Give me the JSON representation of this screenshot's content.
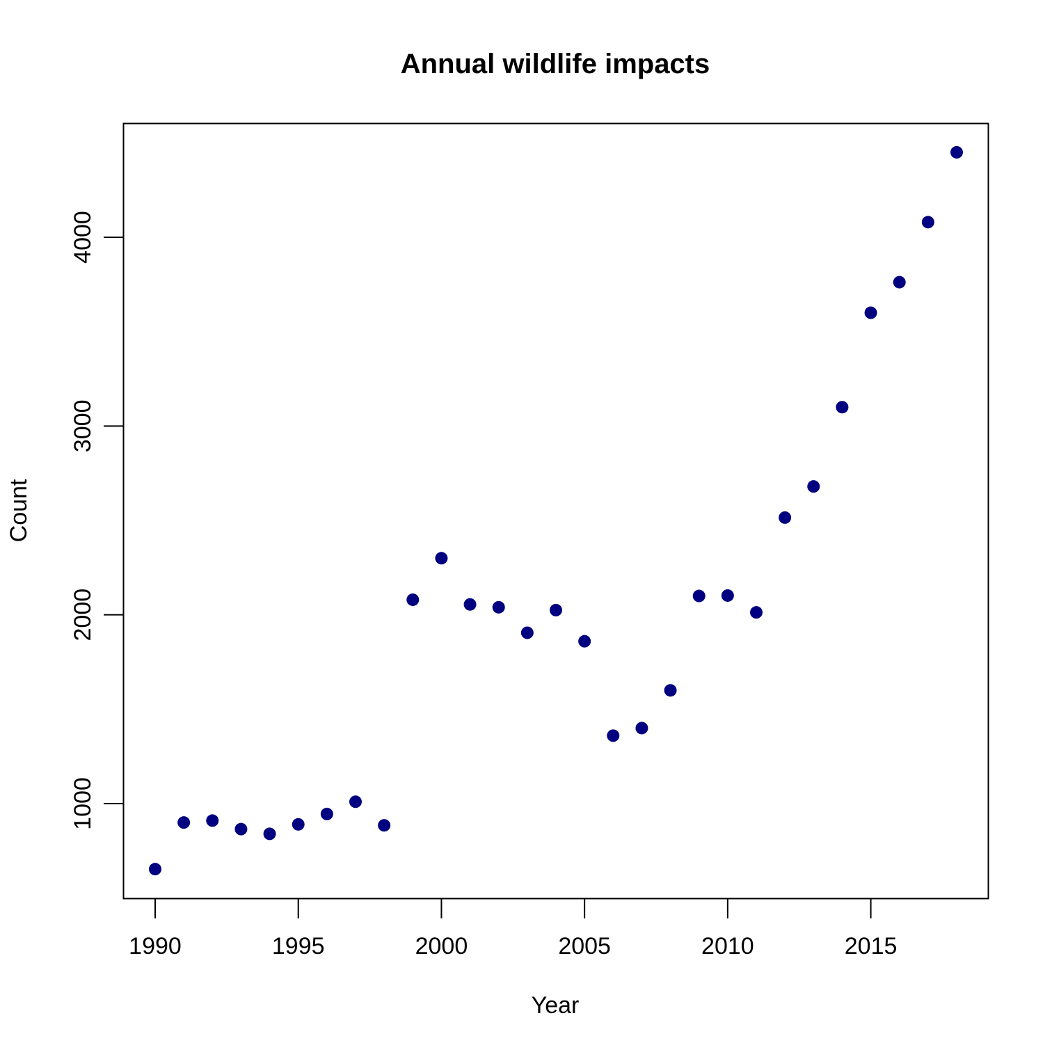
{
  "chart_data": {
    "type": "scatter",
    "title": "Annual wildlife impacts",
    "xlabel": "Year",
    "ylabel": "Count",
    "xlim": [
      1988.9,
      1989.1
    ],
    "ylim": [
      500,
      4600
    ],
    "x_ticks": [
      1990,
      1995,
      2000,
      2005,
      2010,
      2015
    ],
    "y_ticks": [
      1000,
      2000,
      3000,
      4000
    ],
    "grid": false,
    "point_color": "#000080",
    "x": [
      1990,
      1991,
      1992,
      1993,
      1994,
      1995,
      1996,
      1997,
      1998,
      1999,
      2000,
      2001,
      2002,
      2003,
      2004,
      2005,
      2006,
      2007,
      2008,
      2009,
      2010,
      2011,
      2012,
      2013,
      2014,
      2015,
      2016,
      2017,
      2018
    ],
    "y": [
      653,
      900,
      910,
      865,
      840,
      890,
      945,
      1010,
      885,
      2080,
      2300,
      2055,
      2040,
      1905,
      2025,
      1860,
      1360,
      1400,
      1600,
      2100,
      2102,
      2013,
      2515,
      2680,
      3100,
      3600,
      3762,
      4080,
      4450
    ]
  }
}
